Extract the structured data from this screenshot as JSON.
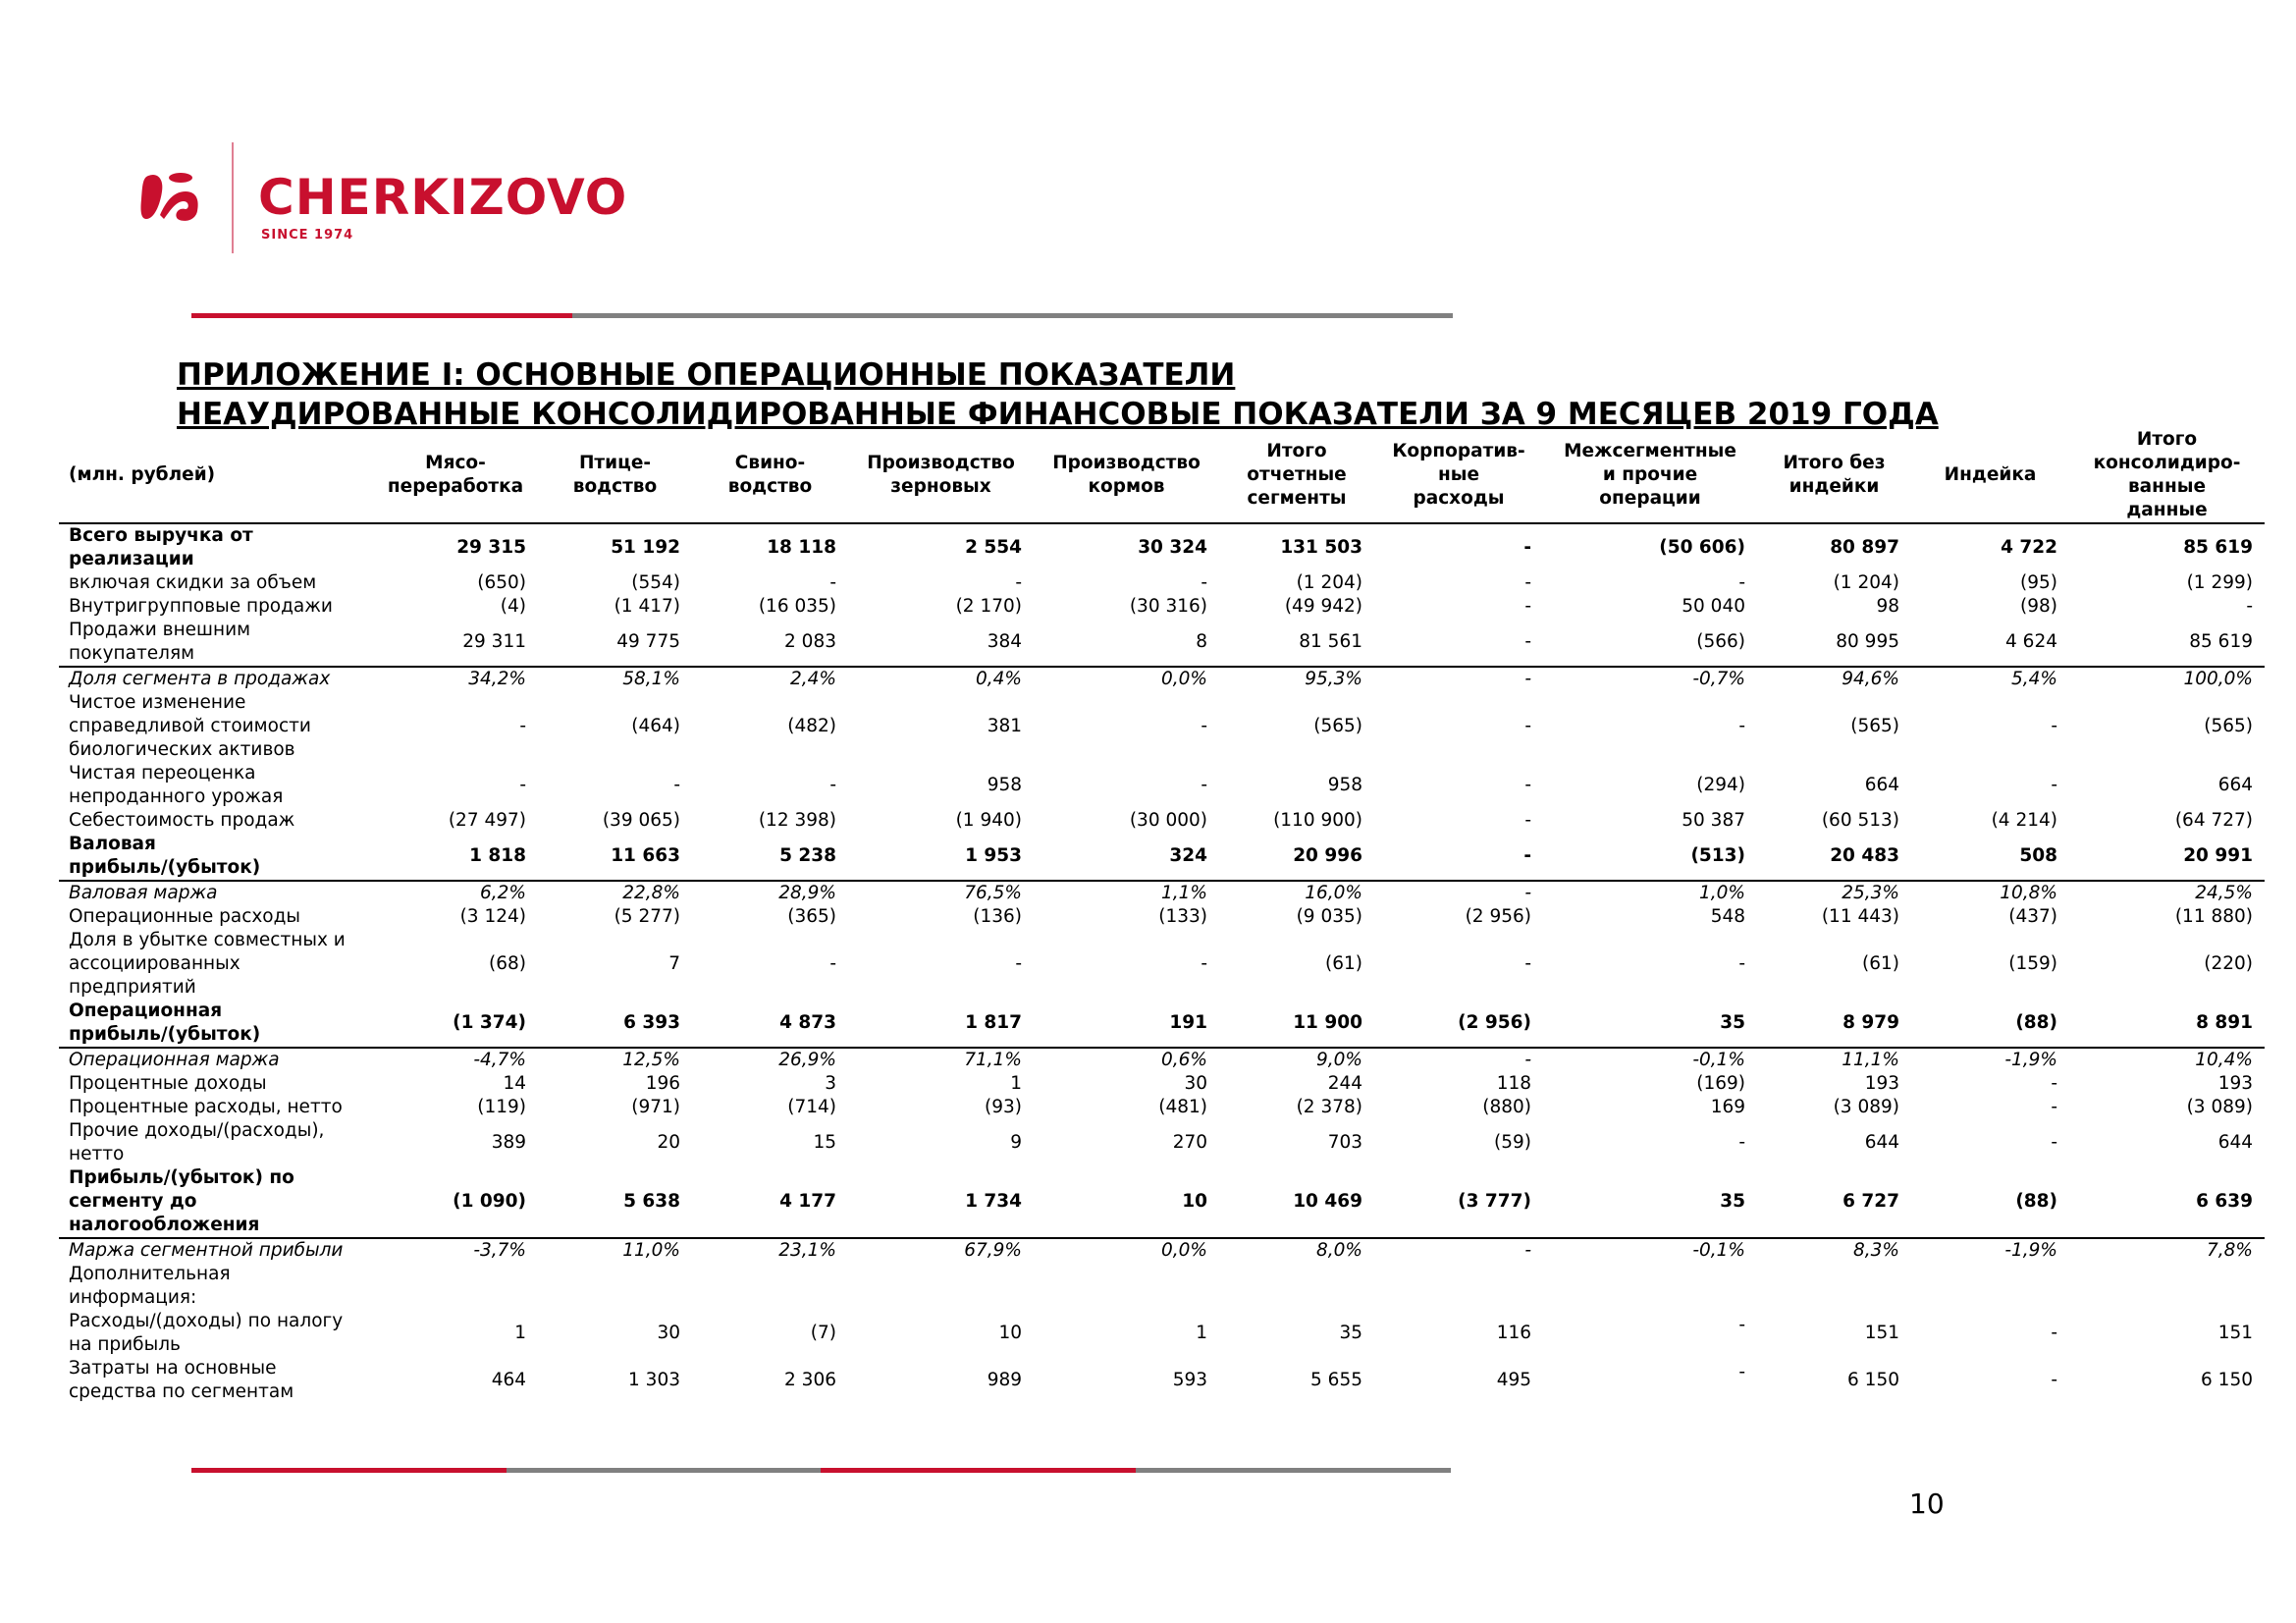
{
  "brand": {
    "name": "CHERKIZOVO",
    "tagline": "SINCE 1974",
    "color": "#c8102e"
  },
  "title": {
    "line1": "ПРИЛОЖЕНИЕ I: ОСНОВНЫЕ ОПЕРАЦИОННЫЕ ПОКАЗАТЕЛИ",
    "line2": "НЕАУДИРОВАННЫЕ КОНСОЛИДИРОВАННЫЕ ФИНАНСОВЫЕ ПОКАЗАТЕЛИ ЗА 9 МЕСЯЦЕВ 2019 ГОДА"
  },
  "table": {
    "headers": [
      "(млн. рублей)",
      "Мясо-\nпереработка",
      "Птице-\nводство",
      "Свино-\nводство",
      "Производство\nзерновых",
      "Производство\nкормов",
      "Итого\nотчетные\nсегменты",
      "Корпоратив-\nные\nрасходы",
      "Межсегментные\nи прочие\nоперации",
      "Итого без\nиндейки",
      "Индейка",
      "Итого\nконсолидиро-\nванные\nданные"
    ],
    "rows": [
      {
        "style": "bold",
        "label": "Всего выручка от\nреализации",
        "values": [
          "29 315",
          "51 192",
          "18 118",
          "2 554",
          "30 324",
          "131 503",
          "-",
          "(50 606)",
          "80 897",
          "4 722",
          "85 619"
        ]
      },
      {
        "style": "",
        "label": "включая скидки за объем",
        "values": [
          "(650)",
          "(554)",
          "-",
          "-",
          "-",
          "(1 204)",
          "-",
          "-",
          "(1 204)",
          "(95)",
          "(1 299)"
        ]
      },
      {
        "style": "",
        "label": "Внутригрупповые продажи",
        "values": [
          "(4)",
          "(1 417)",
          "(16 035)",
          "(2 170)",
          "(30 316)",
          "(49 942)",
          "-",
          "50 040",
          "98",
          "(98)",
          "-"
        ]
      },
      {
        "style": "bb",
        "label": "Продажи внешним\nпокупателям",
        "values": [
          "29 311",
          "49 775",
          "2 083",
          "384",
          "8",
          "81 561",
          "-",
          "(566)",
          "80 995",
          "4 624",
          "85 619"
        ]
      },
      {
        "style": "it",
        "label": "Доля сегмента в продажах",
        "values": [
          "34,2%",
          "58,1%",
          "2,4%",
          "0,4%",
          "0,0%",
          "95,3%",
          "-",
          "-0,7%",
          "94,6%",
          "5,4%",
          "100,0%"
        ]
      },
      {
        "style": "",
        "label": "Чистое изменение\nсправедливой стоимости\nбиологических активов",
        "values": [
          "-",
          "(464)",
          "(482)",
          "381",
          "-",
          "(565)",
          "-",
          "-",
          "(565)",
          "-",
          "(565)"
        ]
      },
      {
        "style": "",
        "label": "Чистая переоценка\nнепроданного урожая",
        "values": [
          "-",
          "-",
          "-",
          "958",
          "-",
          "958",
          "-",
          "(294)",
          "664",
          "-",
          "664"
        ]
      },
      {
        "style": "",
        "label": "Себестоимость продаж",
        "values": [
          "(27 497)",
          "(39 065)",
          "(12 398)",
          "(1 940)",
          "(30 000)",
          "(110 900)",
          "-",
          "50 387",
          "(60 513)",
          "(4 214)",
          "(64 727)"
        ]
      },
      {
        "style": "bold bb",
        "label": "Валовая\nприбыль/(убыток)",
        "values": [
          "1 818",
          "11 663",
          "5 238",
          "1 953",
          "324",
          "20 996",
          "-",
          "(513)",
          "20 483",
          "508",
          "20 991"
        ]
      },
      {
        "style": "it",
        "label": "Валовая маржа",
        "values": [
          "6,2%",
          "22,8%",
          "28,9%",
          "76,5%",
          "1,1%",
          "16,0%",
          "-",
          "1,0%",
          "25,3%",
          "10,8%",
          "24,5%"
        ]
      },
      {
        "style": "",
        "label": "Операционные расходы",
        "values": [
          "(3 124)",
          "(5 277)",
          "(365)",
          "(136)",
          "(133)",
          "(9 035)",
          "(2 956)",
          "548",
          "(11 443)",
          "(437)",
          "(11 880)"
        ]
      },
      {
        "style": "",
        "label": "Доля в убытке совместных и\nассоциированных\nпредприятий",
        "values": [
          "(68)",
          "7",
          "-",
          "-",
          "-",
          "(61)",
          "-",
          "-",
          "(61)",
          "(159)",
          "(220)"
        ]
      },
      {
        "style": "bold bb",
        "label": "Операционная\nприбыль/(убыток)",
        "values": [
          "(1 374)",
          "6 393",
          "4 873",
          "1 817",
          "191",
          "11 900",
          "(2 956)",
          "35",
          "8 979",
          "(88)",
          "8 891"
        ]
      },
      {
        "style": "it",
        "label": "Операционная маржа",
        "values": [
          "-4,7%",
          "12,5%",
          "26,9%",
          "71,1%",
          "0,6%",
          "9,0%",
          "-",
          "-0,1%",
          "11,1%",
          "-1,9%",
          "10,4%"
        ]
      },
      {
        "style": "",
        "label": "Процентные доходы",
        "values": [
          "14",
          "196",
          "3",
          "1",
          "30",
          "244",
          "118",
          "(169)",
          "193",
          "-",
          "193"
        ]
      },
      {
        "style": "",
        "label": "Процентные расходы, нетто",
        "values": [
          "(119)",
          "(971)",
          "(714)",
          "(93)",
          "(481)",
          "(2 378)",
          "(880)",
          "169",
          "(3 089)",
          "-",
          "(3 089)"
        ]
      },
      {
        "style": "",
        "label": "Прочие доходы/(расходы),\nнетто",
        "values": [
          "389",
          "20",
          "15",
          "9",
          "270",
          "703",
          "(59)",
          "-",
          "644",
          "-",
          "644"
        ]
      },
      {
        "style": "bold bb",
        "label": "Прибыль/(убыток) по\nсегменту до\nналогообложения",
        "values": [
          "(1 090)",
          "5 638",
          "4 177",
          "1 734",
          "10",
          "10 469",
          "(3 777)",
          "35",
          "6 727",
          "(88)",
          "6 639"
        ]
      },
      {
        "style": "it",
        "label": "Маржа сегментной прибыли",
        "values": [
          "-3,7%",
          "11,0%",
          "23,1%",
          "67,9%",
          "0,0%",
          "8,0%",
          "-",
          "-0,1%",
          "8,3%",
          "-1,9%",
          "7,8%"
        ]
      },
      {
        "style": "",
        "label": "Дополнительная\nинформация:",
        "values": [
          "",
          "",
          "",
          "",
          "",
          "",
          "",
          "",
          "",
          "",
          ""
        ]
      },
      {
        "style": "",
        "label": "Расходы/(доходы) по налогу\nна прибыль",
        "values": [
          "1",
          "30",
          "(7)",
          "10",
          "1",
          "35",
          "116",
          "-",
          "151",
          "-",
          "151"
        ],
        "raised_col": 7
      },
      {
        "style": "",
        "label": "Затраты на основные\nсредства по сегментам",
        "values": [
          "464",
          "1 303",
          "2 306",
          "989",
          "593",
          "5 655",
          "495",
          "-",
          "6 150",
          "-",
          "6 150"
        ],
        "raised_col": 7
      }
    ]
  },
  "page_number": "10"
}
